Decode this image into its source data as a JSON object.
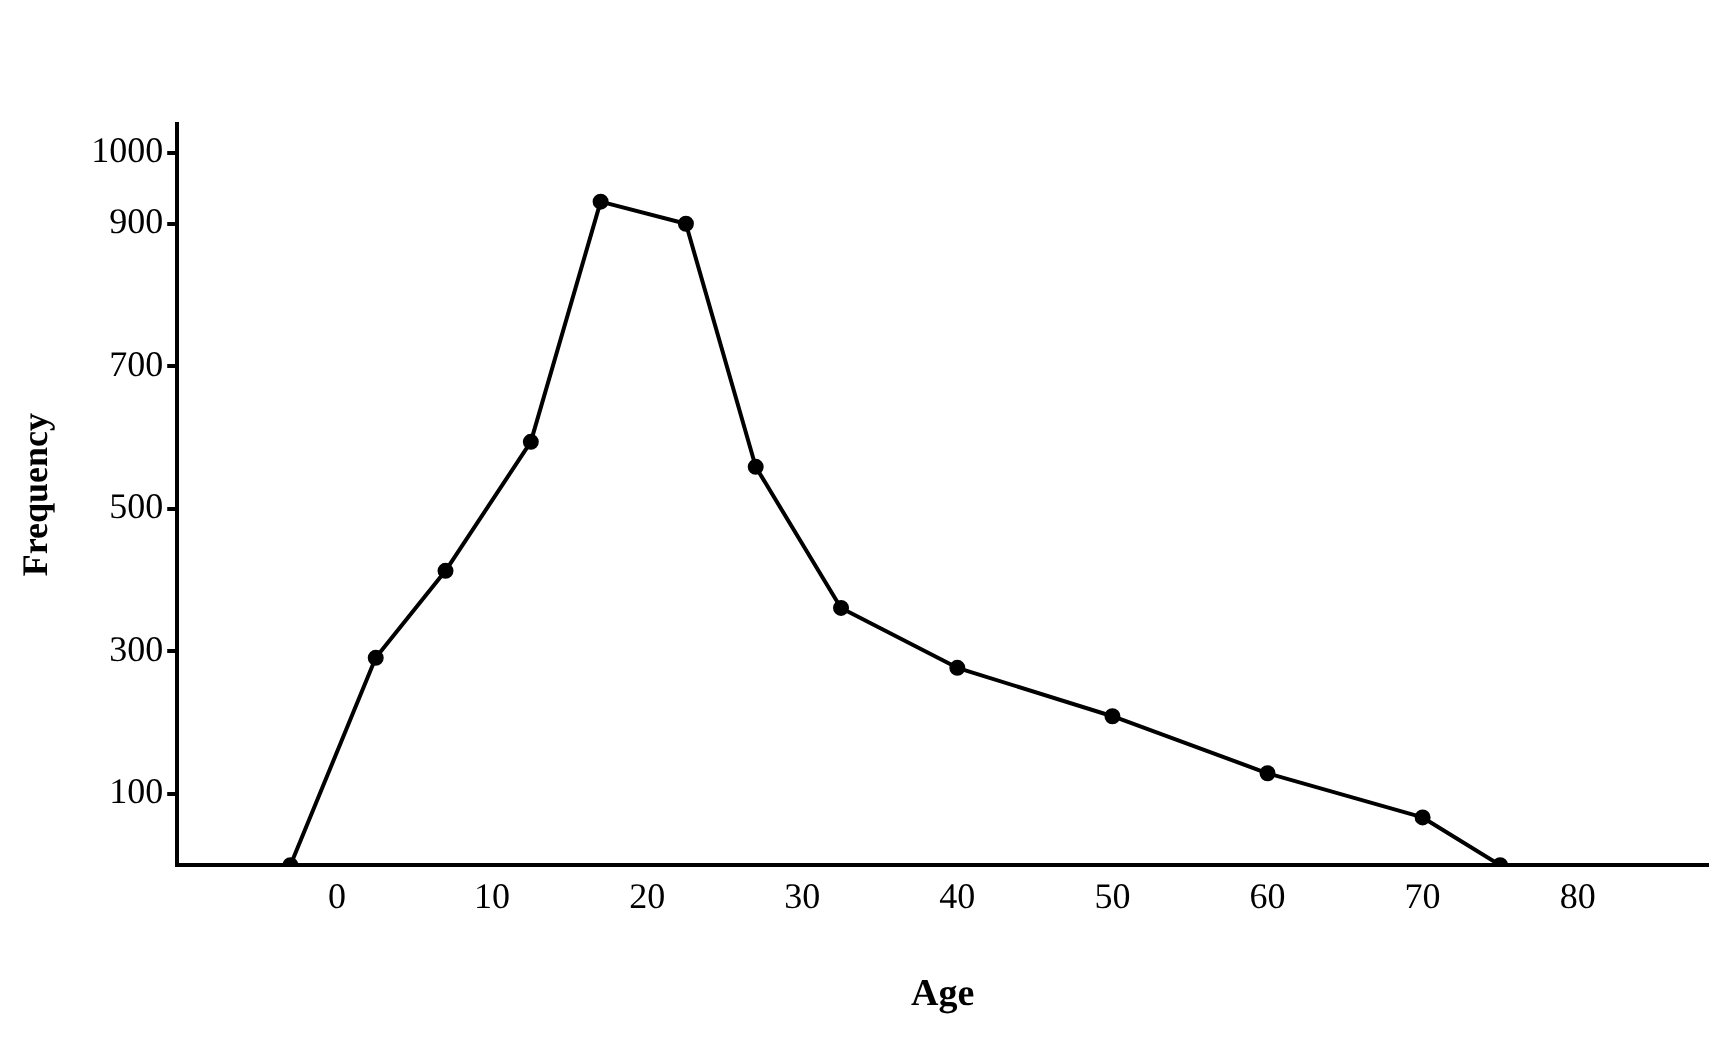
{
  "chart_data": {
    "type": "line",
    "xlabel": "Age",
    "ylabel": "Frequency",
    "x": [
      -3,
      2.5,
      7,
      12.5,
      17,
      22.5,
      27,
      32.5,
      40,
      50,
      60,
      70,
      75
    ],
    "series": [
      {
        "color": "#000000",
        "values": [
          0,
          291,
          413,
          594,
          931,
          900,
          559,
          361,
          277,
          209,
          129,
          67,
          0
        ]
      }
    ],
    "xlim": [
      -10.3,
      88.4
    ],
    "xticks": [
      0,
      10,
      20,
      30,
      40,
      50,
      60,
      70,
      80
    ],
    "ylim": [
      0,
      1040
    ],
    "yticks": [
      100,
      300,
      500,
      700,
      900,
      1000
    ],
    "grid": false,
    "legend": false,
    "marker": "circle",
    "line_style": "solid"
  }
}
